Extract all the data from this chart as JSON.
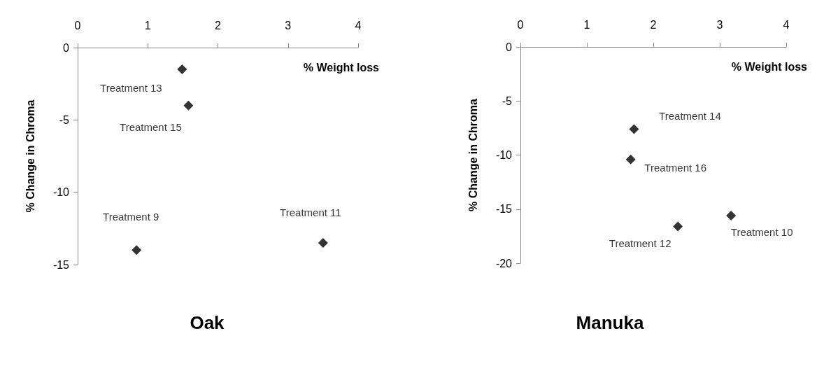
{
  "chart_data": [
    {
      "type": "scatter",
      "title": "Oak",
      "xlabel": "% Weight loss",
      "ylabel": "% Change in Chroma",
      "xlim": [
        0,
        4
      ],
      "xticks": [
        0,
        1,
        2,
        3,
        4
      ],
      "ylim": [
        -15,
        0
      ],
      "yticks": [
        -15,
        -10,
        -5,
        0
      ],
      "grid": false,
      "marker": "diamond",
      "series": [
        {
          "color": "#000000",
          "x": [
            1.49,
            1.58,
            0.84,
            3.5
          ],
          "values": [
            -1.5,
            -4.0,
            -14.0,
            -13.5
          ]
        }
      ],
      "annotations": [
        {
          "text": "Treatment 13",
          "x": 1.49,
          "y": -1.5
        },
        {
          "text": "Treatment 15",
          "x": 1.58,
          "y": -4.0
        },
        {
          "text": "Treatment 9",
          "x": 0.84,
          "y": -14.0
        },
        {
          "text": "Treatment 11",
          "x": 3.5,
          "y": -13.5
        }
      ]
    },
    {
      "type": "scatter",
      "title": "Manuka",
      "xlabel": "% Weight loss",
      "ylabel": "% Change in Chroma",
      "xlim": [
        0,
        4
      ],
      "xticks": [
        0,
        1,
        2,
        3,
        4
      ],
      "ylim": [
        -20,
        0
      ],
      "yticks": [
        -20,
        -15,
        -10,
        -5,
        0
      ],
      "grid": false,
      "marker": "diamond",
      "series": [
        {
          "color": "#000000",
          "x": [
            1.71,
            1.66,
            2.37,
            3.17
          ],
          "values": [
            -7.6,
            -10.4,
            -16.6,
            -15.6
          ]
        }
      ],
      "annotations": [
        {
          "text": "Treatment 14",
          "x": 1.71,
          "y": -7.6
        },
        {
          "text": "Treatment 16",
          "x": 1.66,
          "y": -10.4
        },
        {
          "text": "Treatment 12",
          "x": 2.37,
          "y": -16.6
        },
        {
          "text": "Treatment 10",
          "x": 3.17,
          "y": -15.6
        }
      ]
    }
  ]
}
